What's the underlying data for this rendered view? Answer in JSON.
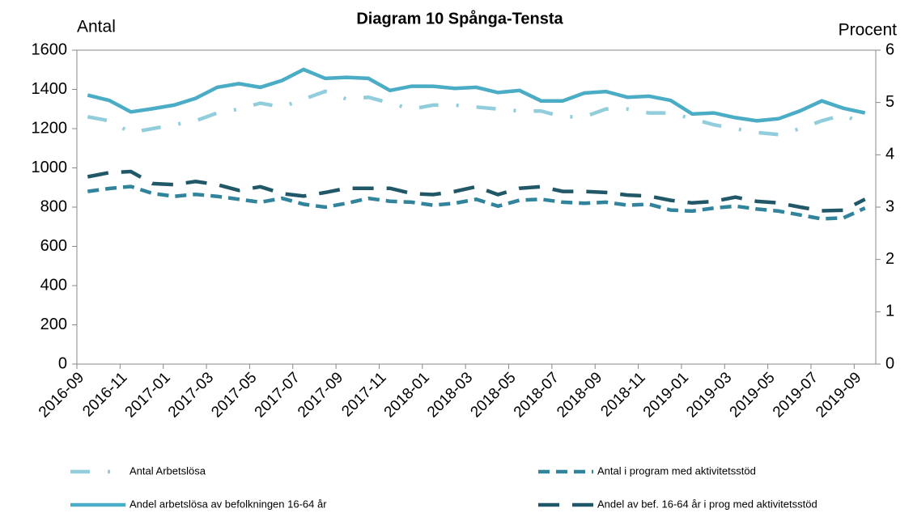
{
  "chart_data": {
    "type": "line",
    "title": "Diagram 10 Spånga-Tensta",
    "y_label": "Antal",
    "y2_label": "Procent",
    "categories": [
      "2016-09",
      null,
      "2016-11",
      null,
      "2017-01",
      null,
      "2017-03",
      null,
      "2017-05",
      null,
      "2017-07",
      null,
      "2017-09",
      null,
      "2017-11",
      null,
      "2018-01",
      null,
      "2018-03",
      null,
      "2018-05",
      null,
      "2018-07",
      null,
      "2018-09",
      null,
      "2018-11",
      null,
      "2019-01",
      null,
      "2019-03",
      null,
      "2019-05",
      null,
      "2019-07",
      null,
      "2019-09"
    ],
    "ylim": [
      0,
      1600
    ],
    "yticks": [
      0,
      200,
      400,
      600,
      800,
      1000,
      1200,
      1400,
      1600
    ],
    "y2lim": [
      0,
      6
    ],
    "y2ticks": [
      0,
      1,
      2,
      3,
      4,
      5,
      6
    ],
    "series": [
      {
        "name": "Antal Arbetslösa",
        "color": "#92cddc",
        "style": "dashdot",
        "values": [
          1260,
          1240,
          1180,
          1200,
          1220,
          1240,
          1280,
          1300,
          1330,
          1310,
          1350,
          1390,
          1350,
          1360,
          1330,
          1300,
          1320,
          1320,
          1310,
          1300,
          1290,
          1290,
          1260,
          1260,
          1300,
          1300,
          1280,
          1280,
          1250,
          1220,
          1200,
          1180,
          1170,
          1200,
          1240,
          1270,
          1220
        ]
      },
      {
        "name": "Antal i program med aktivitetsstöd",
        "color": "#31849b",
        "style": "dash",
        "values": [
          880,
          895,
          905,
          870,
          855,
          865,
          855,
          840,
          825,
          845,
          815,
          800,
          820,
          845,
          830,
          825,
          810,
          820,
          840,
          805,
          835,
          840,
          825,
          820,
          825,
          810,
          815,
          785,
          780,
          795,
          805,
          790,
          780,
          760,
          740,
          745,
          795
        ]
      },
      {
        "name": "Andel arbetslösa av befolkningen 16-64 år",
        "color": "#4bacc6",
        "style": "solid",
        "axis": "y2",
        "values": [
          5.14,
          5.04,
          4.82,
          4.88,
          4.95,
          5.08,
          5.29,
          5.36,
          5.29,
          5.42,
          5.63,
          5.46,
          5.48,
          5.46,
          5.23,
          5.31,
          5.31,
          5.27,
          5.29,
          5.19,
          5.23,
          5.03,
          5.03,
          5.18,
          5.21,
          5.1,
          5.12,
          5.04,
          4.78,
          4.8,
          4.71,
          4.65,
          4.69,
          4.84,
          5.03,
          4.89,
          4.8
        ]
      },
      {
        "name": "Andel av bef. 16-64 år i prog med aktivitetsstöd",
        "color": "#215868",
        "style": "longdash",
        "axis": "y2",
        "values": [
          3.58,
          3.66,
          3.68,
          3.45,
          3.43,
          3.49,
          3.43,
          3.32,
          3.39,
          3.26,
          3.21,
          3.28,
          3.36,
          3.36,
          3.36,
          3.26,
          3.24,
          3.3,
          3.39,
          3.24,
          3.36,
          3.39,
          3.3,
          3.3,
          3.28,
          3.23,
          3.21,
          3.13,
          3.08,
          3.11,
          3.19,
          3.11,
          3.08,
          3.0,
          2.93,
          2.94,
          3.15
        ]
      }
    ]
  }
}
